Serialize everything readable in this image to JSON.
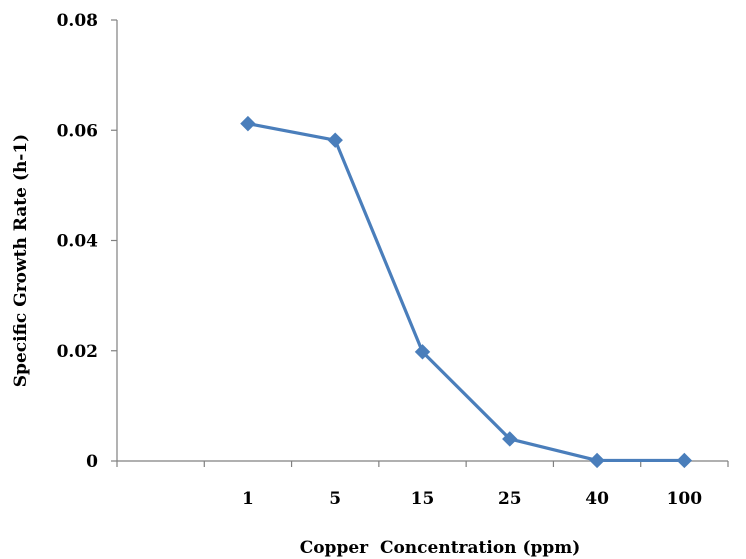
{
  "chart_data": {
    "type": "line",
    "title": "",
    "xlabel": "Copper  Concentration (ppm)",
    "ylabel": "Specific Growth Rate (h-1)",
    "categories": [
      "",
      "1",
      "5",
      "15",
      "25",
      "40",
      "100"
    ],
    "series": [
      {
        "values": [
          null,
          0.0612,
          0.0582,
          0.0198,
          0.004,
          0.0001,
          0.0001
        ]
      }
    ],
    "ylim": [
      0,
      0.08
    ],
    "yticks": [
      0,
      0.02,
      0.04,
      0.06,
      0.08
    ],
    "ytick_labels": [
      "0",
      "0.02",
      "0.04",
      "0.06",
      "0.08"
    ],
    "grid": false,
    "legend": "none",
    "marker": "diamond",
    "line_color": "#4a7ebb",
    "axis_color": "#808080"
  }
}
